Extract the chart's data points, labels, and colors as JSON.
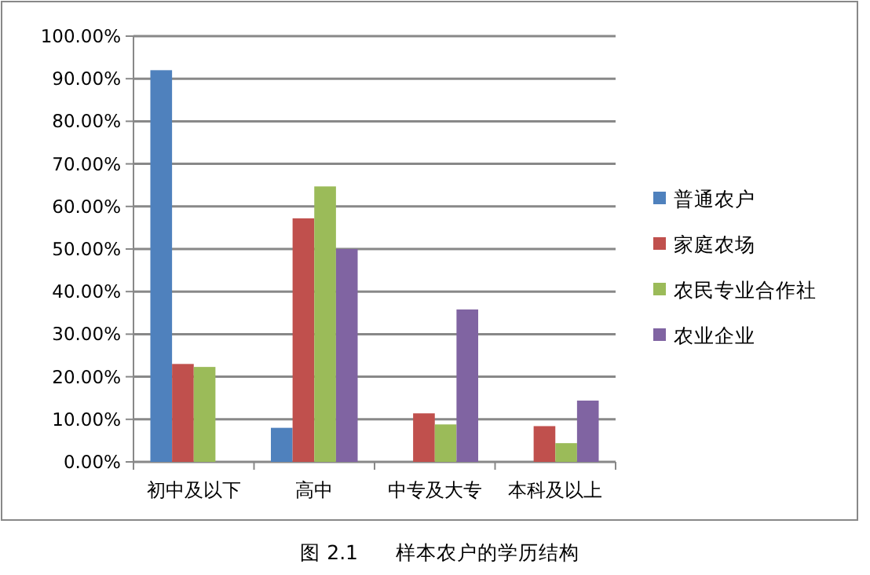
{
  "chart_data": {
    "type": "bar",
    "categories": [
      "初中及以下",
      "高中",
      "中专及大专",
      "本科及以上"
    ],
    "series": [
      {
        "name": "普通农户",
        "color": "#4f81bd",
        "values": [
          92.0,
          8.0,
          0,
          0
        ]
      },
      {
        "name": "家庭农场",
        "color": "#c0504d",
        "values": [
          23.0,
          57.2,
          11.4,
          8.4
        ]
      },
      {
        "name": "农民专业合作社",
        "color": "#9bbb59",
        "values": [
          22.3,
          64.7,
          8.8,
          4.4
        ]
      },
      {
        "name": "农业企业",
        "color": "#8064a2",
        "values": [
          0,
          50.0,
          35.8,
          14.4
        ]
      }
    ],
    "ylim": [
      0,
      100
    ],
    "yticks": [
      {
        "value": 0,
        "label": "0.00%"
      },
      {
        "value": 10,
        "label": "10.00%"
      },
      {
        "value": 20,
        "label": "20.00%"
      },
      {
        "value": 30,
        "label": "30.00%"
      },
      {
        "value": 40,
        "label": "40.00%"
      },
      {
        "value": 50,
        "label": "50.00%"
      },
      {
        "value": 60,
        "label": "60.00%"
      },
      {
        "value": 70,
        "label": "70.00%"
      },
      {
        "value": 80,
        "label": "80.00%"
      },
      {
        "value": 90,
        "label": "90.00%"
      },
      {
        "value": 100,
        "label": "100.00%"
      }
    ],
    "grid": "y",
    "legend": "right",
    "annotations": [
      "图 2.1      样本农户的学历结构"
    ]
  }
}
